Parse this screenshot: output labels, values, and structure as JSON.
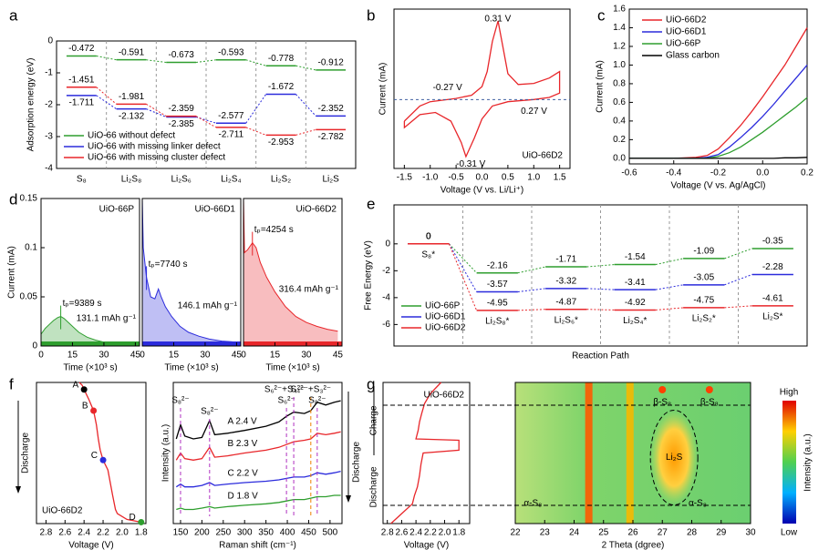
{
  "chart_data": [
    {
      "panel": "a",
      "type": "step",
      "ylabel": "Adsorption energy (eV)",
      "categories": [
        "S₈",
        "Li₂S₈",
        "Li₂S₆",
        "Li₂S₄",
        "Li₂S₂",
        "Li₂S"
      ],
      "ylim": [
        -4,
        0
      ],
      "yticks": [
        -4,
        -3,
        -2,
        -1,
        0
      ],
      "legend": "lower left",
      "label_side": "min-below",
      "series": [
        {
          "name": "UiO-66 without defect",
          "color": "#2e9e2e",
          "values": [
            -0.472,
            -0.591,
            -0.673,
            -0.593,
            -0.778,
            -0.912
          ]
        },
        {
          "name": "UiO-66 with missing linker defect",
          "color": "#2b2bdc",
          "values": [
            -1.711,
            -2.132,
            -2.385,
            -2.577,
            -1.672,
            -2.352
          ]
        },
        {
          "name": "UiO-66 with missing cluster defect",
          "color": "#e8262a",
          "values": [
            -1.451,
            -1.981,
            -2.359,
            -2.711,
            -2.953,
            -2.782
          ]
        }
      ]
    },
    {
      "panel": "b",
      "type": "line",
      "xlabel": "Voltage (V vs. Li/Li⁺)",
      "ylabel": "Current (mA)",
      "xlim": [
        -1.7,
        1.7
      ],
      "xticks": [
        -1.5,
        {
          "value": -1,
          "label": "-1.0"
        },
        -0.5,
        {
          "value": 0,
          "label": "0.0"
        },
        0.5,
        {
          "value": 1,
          "label": "1.0"
        },
        1.5
      ],
      "ylim": [
        -3.2,
        4.2
      ],
      "x": [
        -1.5,
        -1.2,
        -1.0,
        -0.5,
        -0.2,
        0.0,
        0.1,
        0.2,
        0.31,
        0.4,
        0.5,
        0.7,
        1.0,
        1.3,
        1.5,
        1.5,
        1.3,
        1.0,
        0.5,
        0.2,
        0.0,
        -0.15,
        -0.31,
        -0.4,
        -0.6,
        -0.9,
        -1.2,
        -1.5,
        -1.5
      ],
      "series": [
        {
          "name": "UiO-66D2",
          "color": "#e8262a",
          "values": [
            -1.0,
            -0.3,
            -0.1,
            0.05,
            0.2,
            0.6,
            1.3,
            2.7,
            3.65,
            2.5,
            1.2,
            0.7,
            0.75,
            1.0,
            1.3,
            0.3,
            0.1,
            0.0,
            -0.1,
            -0.3,
            -0.9,
            -1.8,
            -2.65,
            -2.0,
            -1.0,
            -0.6,
            -0.7,
            -1.3,
            -1.0
          ]
        }
      ],
      "annotations": [
        "0.31 V",
        "-0.27 V",
        "0.27 V",
        "-0.31 V"
      ]
    },
    {
      "panel": "c",
      "type": "line",
      "xlabel": "Voltage (V vs. Ag/AgCl)",
      "ylabel": "Current (mA)",
      "xlim": [
        -0.6,
        0.2
      ],
      "xticks": [
        -0.6,
        -0.4,
        -0.2,
        {
          "value": 0,
          "label": "0.0"
        },
        0.2
      ],
      "ylim": [
        -0.06,
        1.6
      ],
      "yticks": [
        {
          "value": 0,
          "label": "0.0"
        },
        0.2,
        0.4,
        0.6,
        0.8,
        {
          "value": 1,
          "label": "1.0"
        },
        1.2,
        1.4,
        1.6
      ],
      "legend": "upper left",
      "x": [
        -0.6,
        -0.5,
        -0.4,
        -0.3,
        -0.25,
        -0.2,
        -0.15,
        -0.1,
        -0.05,
        0,
        0.05,
        0.1,
        0.15,
        0.2
      ],
      "series": [
        {
          "name": "UiO-66D2",
          "color": "#e8262a",
          "values": [
            0,
            0,
            0,
            0.01,
            0.03,
            0.1,
            0.22,
            0.35,
            0.5,
            0.66,
            0.83,
            1.0,
            1.2,
            1.4
          ]
        },
        {
          "name": "UiO-66D1",
          "color": "#2b2bdc",
          "values": [
            0,
            0,
            0,
            0,
            0.01,
            0.04,
            0.12,
            0.22,
            0.33,
            0.45,
            0.58,
            0.72,
            0.86,
            1.0
          ]
        },
        {
          "name": "UiO-66P",
          "color": "#2e9e2e",
          "values": [
            0,
            0,
            0,
            0,
            0,
            0.02,
            0.06,
            0.12,
            0.2,
            0.28,
            0.37,
            0.46,
            0.55,
            0.65
          ]
        },
        {
          "name": "Glass carbon",
          "color": "#000000",
          "values": [
            0,
            0,
            0,
            0,
            0,
            0,
            0,
            0,
            0,
            0,
            0,
            0.005,
            0.005,
            0.01
          ]
        }
      ]
    },
    {
      "panel": "d",
      "type": "area",
      "xlabel": "Time (×10³ s)",
      "ylabel": "Current (mA)",
      "xlim": [
        0,
        47
      ],
      "xticks": [
        0,
        15,
        30,
        45
      ],
      "ylim": [
        0,
        0.15
      ],
      "yticks": [
        0,
        0.05,
        0.1,
        0.15
      ],
      "series": [
        {
          "name": "UiO-66P",
          "color": "#2e9e2e",
          "tp": "tₚ=9389 s",
          "capacity": "131.1 mAh g⁻¹",
          "x": [
            0,
            2,
            4,
            6,
            8,
            9.4,
            11,
            14,
            18,
            22,
            26,
            30,
            35,
            40,
            45
          ],
          "values": [
            0.012,
            0.018,
            0.022,
            0.026,
            0.029,
            0.03,
            0.028,
            0.022,
            0.014,
            0.009,
            0.006,
            0.004,
            0.003,
            0.002,
            0.002
          ]
        },
        {
          "name": "UiO-66D1",
          "color": "#2b2bdc",
          "tp": "tₚ=7740 s",
          "capacity": "146.1 mAh g⁻¹",
          "x": [
            0,
            0.5,
            2,
            4,
            6,
            7.7,
            9,
            11,
            14,
            18,
            22,
            27,
            32,
            38,
            45
          ],
          "values": [
            0.15,
            0.1,
            0.07,
            0.05,
            0.048,
            0.058,
            0.05,
            0.04,
            0.03,
            0.02,
            0.014,
            0.01,
            0.007,
            0.005,
            0.004
          ]
        },
        {
          "name": "UiO-66D2",
          "color": "#e8262a",
          "tp": "tₚ=4254 s",
          "capacity": "316.4 mAh g⁻¹",
          "x": [
            0,
            0.5,
            2,
            4.25,
            6,
            8,
            11,
            15,
            20,
            25,
            30,
            35,
            40,
            45
          ],
          "values": [
            0.15,
            0.095,
            0.098,
            0.105,
            0.1,
            0.085,
            0.07,
            0.055,
            0.04,
            0.03,
            0.024,
            0.02,
            0.017,
            0.015
          ]
        }
      ]
    },
    {
      "panel": "e",
      "type": "step",
      "xlabel": "Reaction Path",
      "ylabel": "Free Energy (eV)",
      "categories": [
        "S₈*",
        "Li₂S₈*",
        "Li₂S₆*",
        "Li₂S₄*",
        "Li₂S₂*",
        "Li₂S*"
      ],
      "ylim": [
        -7.6,
        2.9
      ],
      "yticks": [
        -6,
        -4,
        -2,
        0
      ],
      "legend": "lower left",
      "label_side": "above",
      "series": [
        {
          "name": "UiO-66P",
          "color": "#2e9e2e",
          "values": [
            0,
            -2.16,
            -1.71,
            -1.54,
            -1.09,
            -0.35
          ]
        },
        {
          "name": "UiO-66D1",
          "color": "#2b2bdc",
          "values": [
            0,
            -3.57,
            -3.32,
            -3.41,
            -3.05,
            -2.28
          ]
        },
        {
          "name": "UiO-66D2",
          "color": "#e8262a",
          "values": [
            0,
            -4.95,
            -4.87,
            -4.92,
            -4.75,
            -4.61
          ]
        }
      ]
    },
    {
      "panel": "f",
      "type": "line",
      "xlabel": "Voltage (V)",
      "ylabel": "Discharge",
      "xlim": [
        2.9,
        1.75
      ],
      "xticks": [
        2.8,
        2.6,
        2.4,
        2.2,
        {
          "value": 2,
          "label": "2.0"
        },
        1.8
      ],
      "ylim": [
        1,
        0
      ],
      "x": [
        2.45,
        2.42,
        2.4,
        2.35,
        2.3,
        2.27,
        2.25,
        2.23,
        2.2,
        2.15,
        2.1,
        2.07,
        2.05,
        1.95,
        1.8
      ],
      "series": [
        {
          "name": "UiO-66D2",
          "color": "#e8262a",
          "values": [
            0,
            0.02,
            0.05,
            0.12,
            0.2,
            0.3,
            0.4,
            0.48,
            0.55,
            0.62,
            0.8,
            0.9,
            0.93,
            0.97,
            0.99
          ]
        }
      ],
      "points": [
        {
          "label": "A",
          "x": 2.4,
          "y": 0.05,
          "color": "#000000"
        },
        {
          "label": "B",
          "x": 2.3,
          "y": 0.2,
          "color": "#e8262a"
        },
        {
          "label": "C",
          "x": 2.2,
          "y": 0.55,
          "color": "#2b2bdc"
        },
        {
          "label": "D",
          "x": 1.8,
          "y": 0.99,
          "color": "#2e9e2e"
        }
      ]
    },
    {
      "type": "line",
      "xlabel": "Raman shift (cm⁻¹)",
      "ylabel": "Intensity (a.u.)",
      "side_label": "Discharge",
      "xlim": [
        133,
        528
      ],
      "xticks": [
        150,
        200,
        250,
        300,
        350,
        400,
        450,
        500
      ],
      "ylim": [
        0,
        10
      ],
      "x": [
        140,
        150,
        160,
        180,
        200,
        218,
        230,
        260,
        300,
        350,
        380,
        398,
        415,
        440,
        455,
        470,
        490,
        510,
        525
      ],
      "series": [
        {
          "name": "A 2.4 V",
          "color": "#000000",
          "values": [
            6.0,
            7.0,
            6.2,
            6.0,
            6.1,
            7.3,
            6.3,
            6.4,
            6.6,
            6.9,
            7.2,
            7.6,
            7.9,
            7.8,
            8.0,
            8.6,
            8.4,
            8.6,
            8.7
          ]
        },
        {
          "name": "B 2.3 V",
          "color": "#e8262a",
          "values": [
            4.5,
            5.0,
            4.6,
            4.5,
            4.6,
            5.4,
            4.7,
            4.8,
            5.0,
            5.2,
            5.4,
            5.6,
            5.8,
            5.9,
            6.0,
            6.4,
            6.3,
            6.4,
            6.5
          ]
        },
        {
          "name": "C 2.2 V",
          "color": "#2b2bdc",
          "values": [
            2.6,
            2.8,
            2.6,
            2.6,
            2.7,
            2.9,
            2.7,
            2.8,
            2.9,
            3.0,
            3.1,
            3.2,
            3.3,
            3.3,
            3.4,
            3.6,
            3.5,
            3.6,
            3.7
          ]
        },
        {
          "name": "D 1.8 V",
          "color": "#2e9e2e",
          "values": [
            1.0,
            1.1,
            1.0,
            1.0,
            1.1,
            1.2,
            1.1,
            1.2,
            1.3,
            1.4,
            1.5,
            1.6,
            1.7,
            1.7,
            1.8,
            1.9,
            1.9,
            2.0,
            2.0
          ]
        }
      ],
      "peaks": [
        {
          "label": "S₈²⁻",
          "x": 150,
          "color": "#b030c0"
        },
        {
          "label": "S₈²⁻",
          "x": 218,
          "color": "#b030c0"
        },
        {
          "label": "S₆²⁻",
          "x": 398,
          "color": "#b030c0"
        },
        {
          "label": "S₆²⁻+S₄²⁻",
          "x": 415,
          "color": "#b030c0"
        },
        {
          "label": "S₄²⁻+S₃²⁻",
          "x": 455,
          "color": "#f08000"
        },
        {
          "label": "S₈²⁻",
          "x": 470,
          "color": "#b030c0"
        }
      ]
    },
    {
      "panel": "g",
      "type": "line",
      "xlabel": "Voltage (V)",
      "ylabel_top": "Charge",
      "ylabel_bottom": "Discharge",
      "xlim": [
        2.86,
        1.65
      ],
      "xticks": [
        2.8,
        2.6,
        2.4,
        2.2,
        {
          "value": 2,
          "label": "2.0"
        },
        1.8
      ],
      "ylim": [
        1,
        0
      ],
      "x": [
        2.05,
        2.2,
        2.28,
        2.32,
        2.35,
        2.37,
        2.4,
        1.8,
        1.8,
        2.3,
        2.33,
        2.35,
        2.38,
        2.42,
        2.45,
        2.6,
        2.75
      ],
      "series": [
        {
          "name": "UiO-66D2",
          "color": "#e8262a",
          "values": [
            0,
            0.08,
            0.15,
            0.22,
            0.28,
            0.34,
            0.4,
            0.41,
            0.48,
            0.5,
            0.58,
            0.66,
            0.74,
            0.8,
            0.86,
            0.93,
            1.0
          ]
        }
      ]
    },
    {
      "type": "heatmap",
      "xlabel": "2 Theta (dgree)",
      "xlim": [
        22,
        30
      ],
      "xticks": [
        22,
        23,
        24,
        25,
        26,
        27,
        28,
        29,
        30
      ],
      "peaks": [
        24.5,
        25.9
      ],
      "annotations": [
        "β-S₈",
        "β-S₈",
        "Li₂S",
        "α-S₈",
        "α-S₈"
      ],
      "colorbar": {
        "label": "Intensity (a.u.)",
        "high": "High",
        "low": "Low"
      }
    }
  ]
}
